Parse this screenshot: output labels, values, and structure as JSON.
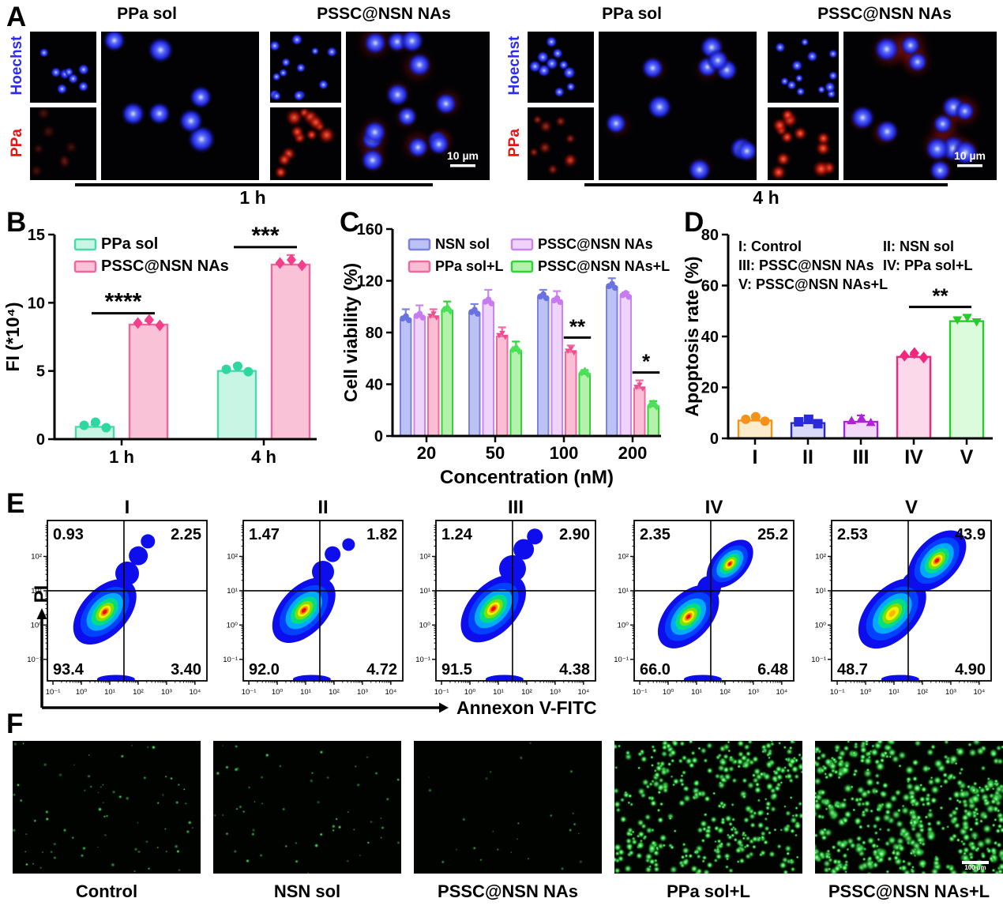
{
  "panel_labels": {
    "A": "A",
    "B": "B",
    "C": "C",
    "D": "D",
    "E": "E",
    "F": "F"
  },
  "panel_a": {
    "row_labels": [
      "Hoechst",
      "PPa"
    ],
    "row_label_colors": [
      "#2b2bf2",
      "#ee1212"
    ],
    "groups": [
      {
        "time": "1 h",
        "columns": [
          "PPa sol",
          "PSSC@NSN NAs"
        ],
        "scale_bar": "10 µm"
      },
      {
        "time": "4 h",
        "columns": [
          "PPa sol",
          "PSSC@NSN NAs"
        ],
        "scale_bar": "10 µm"
      }
    ]
  },
  "chart_data": [
    {
      "panel": "B",
      "type": "bar",
      "ylabel": "FI (*10⁴)",
      "categories": [
        "1 h",
        "4 h"
      ],
      "series": [
        {
          "name": "PPa sol",
          "values": [
            0.9,
            5.0
          ],
          "errors": [
            0.15,
            0.45
          ],
          "fill": "#c9f6e4",
          "stroke": "#4adba8",
          "marker": "#2fd7a0",
          "marker_shape": "circle"
        },
        {
          "name": "PSSC@NSN NAs",
          "values": [
            8.4,
            12.8
          ],
          "errors": [
            0.25,
            0.7
          ],
          "fill": "#f9c2d6",
          "stroke": "#ef679f",
          "marker": "#f43f8a",
          "marker_shape": "diamond"
        }
      ],
      "ylim": [
        0,
        15
      ],
      "yticks": [
        0,
        5,
        10,
        15
      ],
      "significance": [
        {
          "category": "1 h",
          "series_span": [
            0,
            1
          ],
          "label": "****"
        },
        {
          "category": "4 h",
          "series_span": [
            0,
            1
          ],
          "label": "***"
        }
      ]
    },
    {
      "panel": "C",
      "type": "bar",
      "ylabel": "Cell viability (%)",
      "xlabel": "Concentration (nM)",
      "categories": [
        "20",
        "50",
        "100",
        "200"
      ],
      "series": [
        {
          "name": "NSN sol",
          "values": [
            90,
            95,
            107,
            115
          ],
          "errors": [
            8,
            7,
            6,
            7
          ],
          "fill": "#bcc3f4",
          "stroke": "#7c82e0",
          "marker": "#6a71e0",
          "marker_shape": "circle"
        },
        {
          "name": "PSSC@NSN NAs",
          "values": [
            92,
            103,
            104,
            108
          ],
          "errors": [
            9,
            10,
            8,
            3
          ],
          "fill": "#eed3fa",
          "stroke": "#cb85ef",
          "marker": "#c87bf0",
          "marker_shape": "circle"
        },
        {
          "name": "PPa sol+L",
          "values": [
            92,
            77,
            65,
            37
          ],
          "errors": [
            6,
            7,
            5,
            6
          ],
          "fill": "#f9bed3",
          "stroke": "#ef6aa1",
          "marker": "#f04c92",
          "marker_shape": "triangle-down"
        },
        {
          "name": "PSSC@NSN NAs+L",
          "values": [
            97,
            66,
            48,
            23
          ],
          "errors": [
            7,
            7,
            3,
            4
          ],
          "fill": "#b4f2ac",
          "stroke": "#2fd435",
          "marker": "#4ae05a",
          "marker_shape": "diamond"
        }
      ],
      "ylim": [
        0,
        160
      ],
      "yticks": [
        0,
        40,
        80,
        120,
        160
      ],
      "significance": [
        {
          "category": "100",
          "series_span": [
            2,
            3
          ],
          "label": "**"
        },
        {
          "category": "200",
          "series_span": [
            2,
            3
          ],
          "label": "*"
        }
      ]
    },
    {
      "panel": "D",
      "type": "bar",
      "ylabel": "Apoptosis rate (%)",
      "categories": [
        "I",
        "II",
        "III",
        "IV",
        "V"
      ],
      "values": [
        7,
        6,
        6.5,
        32,
        46
      ],
      "errors": [
        1.5,
        0.8,
        2.5,
        0.8,
        2.5
      ],
      "bar_styles": [
        {
          "fill": "#fdeccb",
          "stroke": "#f79218",
          "marker": "#f79218",
          "marker_shape": "circle"
        },
        {
          "fill": "#d9d9f8",
          "stroke": "#2a2ad8",
          "marker": "#2a2ad8",
          "marker_shape": "square"
        },
        {
          "fill": "#f2d9f8",
          "stroke": "#ae22d8",
          "marker": "#ae22d8",
          "marker_shape": "triangle-up"
        },
        {
          "fill": "#fbd9ea",
          "stroke": "#f2267e",
          "marker": "#f2267e",
          "marker_shape": "diamond"
        },
        {
          "fill": "#dcfadc",
          "stroke": "#28cc28",
          "marker": "#28cc28",
          "marker_shape": "triangle-down"
        }
      ],
      "legend_lines": [
        [
          "I: Control",
          "II: NSN sol"
        ],
        [
          "III: PSSC@NSN NAs",
          "IV: PPa sol+L"
        ],
        [
          "V: PSSC@NSN NAs+L",
          ""
        ]
      ],
      "ylim": [
        0,
        80
      ],
      "yticks": [
        0,
        20,
        40,
        60,
        80
      ],
      "significance": [
        {
          "between": [
            "IV",
            "V"
          ],
          "label": "**"
        }
      ]
    },
    {
      "panel": "E",
      "type": "density-scatter",
      "xlabel": "Annexon V-FITC",
      "ylabel": "PI",
      "x_ticks": [
        "10⁻¹",
        "10⁰",
        "10¹",
        "10²",
        "10³",
        "10⁴"
      ],
      "y_ticks": [
        "10²",
        "10¹",
        "10⁰",
        "10⁻¹"
      ],
      "plots": [
        {
          "title": "I",
          "quadrants": {
            "upper_left": "0.93",
            "upper_right": "2.25",
            "lower_left": "93.4",
            "lower_right": "3.40"
          }
        },
        {
          "title": "II",
          "quadrants": {
            "upper_left": "1.47",
            "upper_right": "1.82",
            "lower_left": "92.0",
            "lower_right": "4.72"
          }
        },
        {
          "title": "III",
          "quadrants": {
            "upper_left": "1.24",
            "upper_right": "2.90",
            "lower_left": "91.5",
            "lower_right": "4.38"
          }
        },
        {
          "title": "IV",
          "quadrants": {
            "upper_left": "2.35",
            "upper_right": "25.2",
            "lower_left": "66.0",
            "lower_right": "6.48"
          }
        },
        {
          "title": "V",
          "quadrants": {
            "upper_left": "2.53",
            "upper_right": "43.9",
            "lower_left": "48.7",
            "lower_right": "4.90"
          }
        }
      ]
    }
  ],
  "panel_f": {
    "items": [
      "Control",
      "NSN sol",
      "PSSC@NSN NAs",
      "PPa sol+L",
      "PSSC@NSN NAs+L"
    ],
    "scale_bar": "100 µm"
  }
}
